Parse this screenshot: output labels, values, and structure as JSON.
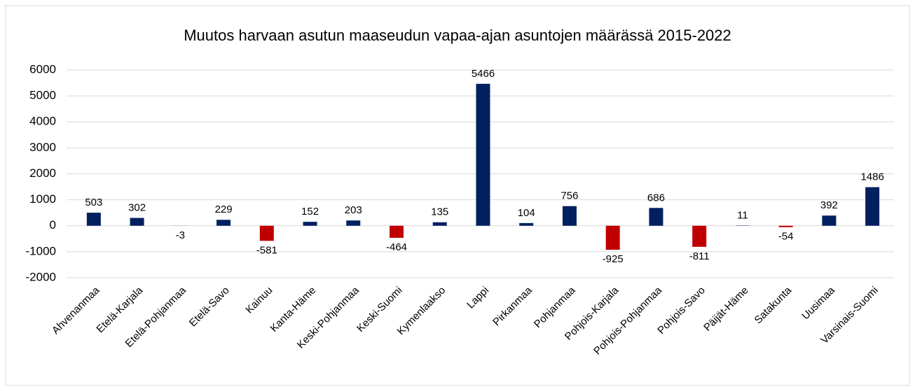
{
  "chart_data": {
    "type": "bar",
    "title": "Muutos harvaan asutun maaseudun vapaa-ajan asuntojen määrässä 2015-2022",
    "categories": [
      "Ahvenanmaa",
      "Etelä-Karjala",
      "Etelä-Pohjanmaa",
      "Etelä-Savo",
      "Kainuu",
      "Kanta-Häme",
      "Keski-Pohjanmaa",
      "Keski-Suomi",
      "Kymenlaakso",
      "Lappi",
      "Pirkanmaa",
      "Pohjanmaa",
      "Pohjois-Karjala",
      "Pohjois-Pohjanmaa",
      "Pohjois-Savo",
      "Päijät-Häme",
      "Satakunta",
      "Uusimaa",
      "Varsinais-Suomi"
    ],
    "values": [
      503,
      302,
      -3,
      229,
      -581,
      152,
      203,
      -464,
      135,
      5466,
      104,
      756,
      -925,
      686,
      -811,
      11,
      -54,
      392,
      1486
    ],
    "color": "#002060",
    "negative_color": "#c00000",
    "ylim": [
      -2000,
      6000
    ],
    "yticks": [
      -2000,
      -1000,
      0,
      1000,
      2000,
      3000,
      4000,
      5000,
      6000
    ],
    "grid": true
  }
}
